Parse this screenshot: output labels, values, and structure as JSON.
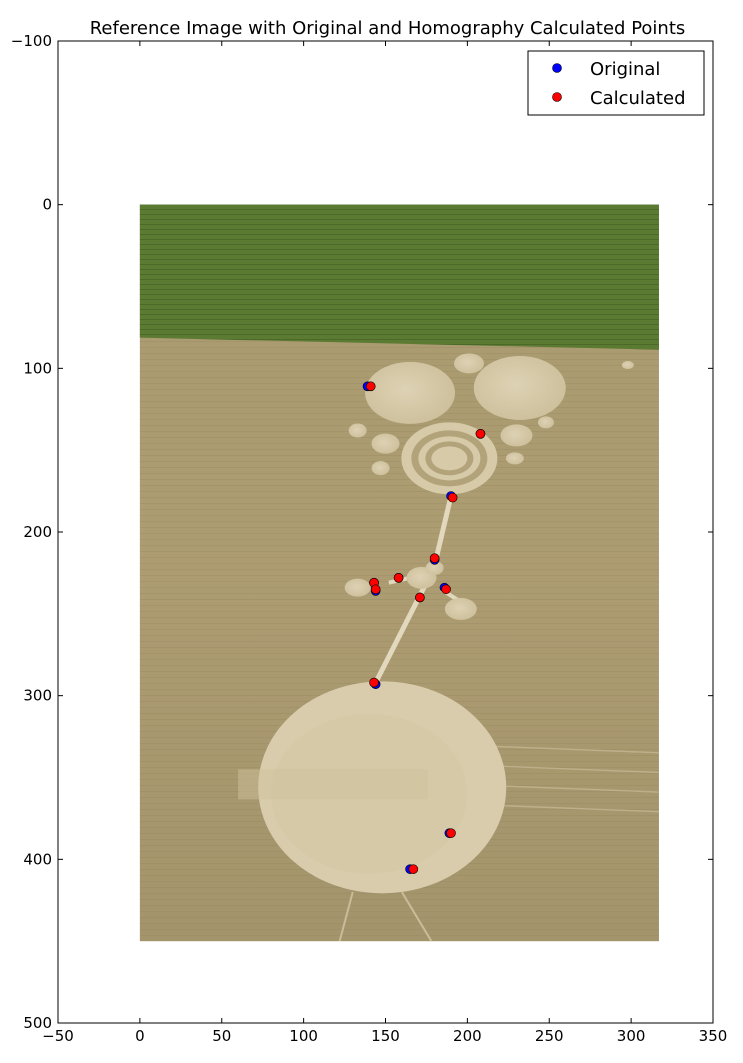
{
  "chart_data": {
    "type": "scatter",
    "title": "Reference Image with Original and Homography Calculated Points",
    "xlabel": "",
    "ylabel": "",
    "xlim": [
      -50,
      350
    ],
    "ylim": [
      500,
      -100
    ],
    "y_inverted": true,
    "grid": false,
    "legend_position": "top-right",
    "x_ticks": [
      -50,
      0,
      50,
      100,
      150,
      200,
      250,
      300,
      350
    ],
    "y_ticks": [
      -100,
      0,
      100,
      200,
      300,
      400,
      500
    ],
    "background_image": {
      "description": "aerial photo of crop circle formation",
      "extent": {
        "x": [
          0,
          317
        ],
        "y": [
          0,
          450
        ]
      }
    },
    "series": [
      {
        "name": "Original",
        "color": "#0000ff",
        "x": [
          139,
          208,
          190,
          180,
          143,
          158,
          144,
          186,
          171,
          144,
          189,
          165
        ],
        "y": [
          111,
          140,
          178,
          217,
          231,
          228,
          236,
          234,
          240,
          293,
          384,
          406
        ]
      },
      {
        "name": "Calculated",
        "color": "#ff0000",
        "x": [
          141,
          208,
          191,
          180,
          143,
          158,
          144,
          187,
          171,
          143,
          190,
          167
        ],
        "y": [
          111,
          140,
          179,
          216,
          231,
          228,
          235,
          235,
          240,
          292,
          384,
          406
        ]
      }
    ]
  }
}
